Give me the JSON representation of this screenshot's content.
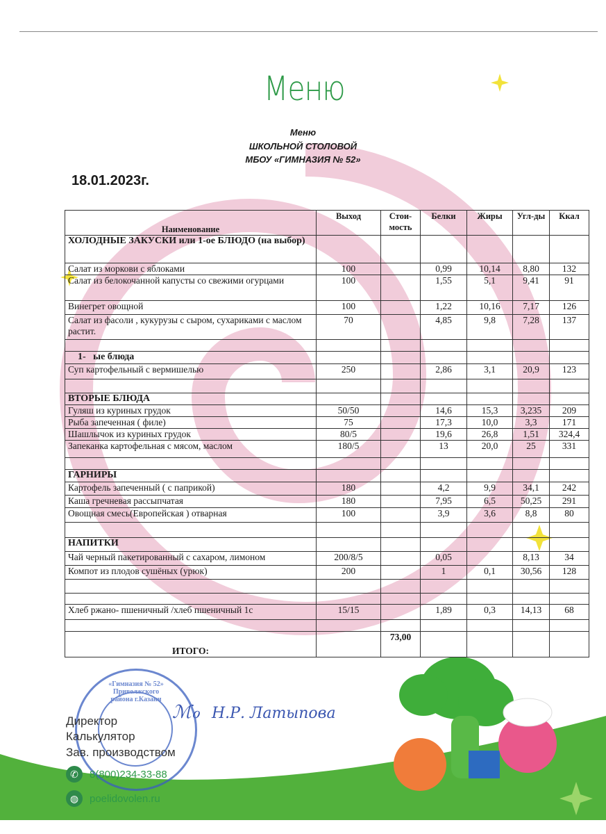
{
  "header": {
    "logo": "Меню",
    "line1": "Меню",
    "line2": "ШКОЛЬНОЙ СТОЛОВОЙ",
    "line3": "МБОУ «ГИМНАЗИЯ № 52»",
    "date": "18.01.2023г."
  },
  "table": {
    "columns": [
      "Наименование",
      "Выход",
      "Стои-мость",
      "Белки",
      "Жиры",
      "Угл-ды",
      "Ккал"
    ],
    "rows": [
      {
        "type": "section",
        "cells": [
          "ХОЛОДНЫЕ ЗАКУСКИ или 1-ое БЛЮДО (на выбор)",
          "",
          "",
          "",
          "",
          "",
          ""
        ],
        "h": 40
      },
      {
        "cells": [
          "Салат из моркови с яблоками",
          "100",
          "",
          "0,99",
          "10,14",
          "8,80",
          "132"
        ],
        "h": 17
      },
      {
        "cells": [
          "Салат из белокочанной капусты со свежими огурцами",
          "100",
          "",
          "1,55",
          "5,1",
          "9,41",
          "91"
        ],
        "h": 37
      },
      {
        "cells": [
          "Винегрет овощной",
          "100",
          "",
          "1,22",
          "10,16",
          "7,17",
          "126"
        ],
        "h": 20
      },
      {
        "cells": [
          "Салат из фасоли , кукурузы с сыром, сухариками с маслом растит.",
          "70",
          "",
          "4,85",
          "9,8",
          "7,28",
          "137"
        ],
        "h": 36
      },
      {
        "cells": [
          "",
          "",
          "",
          "",
          "",
          "",
          ""
        ],
        "h": 17
      },
      {
        "type": "section",
        "cells": [
          "    1-   ые блюда",
          "",
          "",
          "",
          "",
          "",
          ""
        ],
        "h": 18
      },
      {
        "cells": [
          "Суп картофельный с вермишелью",
          "250",
          "",
          "2,86",
          "3,1",
          "20,9",
          "123"
        ],
        "h": 22
      },
      {
        "cells": [
          "",
          "",
          "",
          "",
          "",
          "",
          ""
        ],
        "h": 20
      },
      {
        "type": "section",
        "cells": [
          "ВТОРЫЕ БЛЮДА",
          "",
          "",
          "",
          "",
          "",
          ""
        ],
        "h": 17
      },
      {
        "cells": [
          "Гуляш из куриных грудок",
          "50/50",
          "",
          "14,6",
          "15,3",
          "3,235",
          "209"
        ],
        "h": 16
      },
      {
        "cells": [
          "Рыба запеченная ( филе)",
          "75",
          "",
          "17,3",
          "10,0",
          "3,3",
          "171"
        ],
        "h": 16
      },
      {
        "cells": [
          "Шашлычок из куриных грудок",
          "80/5",
          "",
          "19,6",
          "26,8",
          "1,51",
          "324,4"
        ],
        "h": 16
      },
      {
        "cells": [
          "Запеканка картофельная с мясом, маслом",
          "180/5",
          "",
          "13",
          "20,0",
          "25",
          "331"
        ],
        "h": 25
      },
      {
        "cells": [
          "",
          "",
          "",
          "",
          "",
          "",
          ""
        ],
        "h": 17
      },
      {
        "type": "section",
        "cells": [
          "ГАРНИРЫ",
          "",
          "",
          "",
          "",
          "",
          ""
        ],
        "h": 18
      },
      {
        "cells": [
          "Картофель запеченный ( с паприкой)",
          "180",
          "",
          "4,2",
          "9,9",
          "34,1",
          "242"
        ],
        "h": 19
      },
      {
        "cells": [
          "Каша гречневая рассыпчатая",
          "180",
          "",
          "7,95",
          "6,5",
          "50,25",
          "291"
        ],
        "h": 18
      },
      {
        "cells": [
          "Овощная смесь(Европейская ) отварная",
          "100",
          "",
          "3,9",
          "3,6",
          "8,8",
          "80"
        ],
        "h": 21
      },
      {
        "cells": [
          "",
          "",
          "",
          "",
          "",
          "",
          ""
        ],
        "h": 22
      },
      {
        "type": "section",
        "cells": [
          "НАПИТКИ",
          "",
          "",
          "",
          "",
          "",
          ""
        ],
        "h": 20
      },
      {
        "cells": [
          "Чай черный пакетированный с сахаром, лимоном",
          "200/8/5",
          "",
          "0,05",
          "",
          "8,13",
          "34"
        ],
        "h": 20
      },
      {
        "cells": [
          "Компот из плодов сушёных (урюк)",
          "200",
          "",
          "1",
          "0,1",
          "30,56",
          "128"
        ],
        "h": 20
      },
      {
        "cells": [
          "",
          "",
          "",
          "",
          "",
          "",
          ""
        ],
        "h": 20
      },
      {
        "cells": [
          "",
          "",
          "",
          "",
          "",
          "",
          ""
        ],
        "h": 16
      },
      {
        "cells": [
          "Хлеб  ржано- пшеничный /хлеб пшеничный 1с",
          "15/15",
          "",
          "1,89",
          "0,3",
          "14,13",
          "68"
        ],
        "h": 22
      },
      {
        "cells": [
          "",
          "",
          "",
          "",
          "",
          "",
          ""
        ],
        "h": 17
      },
      {
        "type": "total",
        "cells": [
          "ИТОГО:",
          "",
          "73,00",
          "",
          "",
          "",
          ""
        ],
        "h": 37
      }
    ]
  },
  "footer": {
    "director": "Директор",
    "calculator": "Калькулятор",
    "production": "Зав. производством",
    "signature": "Н.Р. Латыпова",
    "stamp_text": "«Гимназия № 52» Приволжского района г.Казани",
    "phone": "8(800)234-33-88",
    "website": "poelidovolen.ru"
  },
  "colors": {
    "brand_green": "#2e9a48",
    "spiral_pink": "#eec3d3",
    "stamp_blue": "#3a5fbf",
    "star_yellow": "#f2e23a"
  }
}
